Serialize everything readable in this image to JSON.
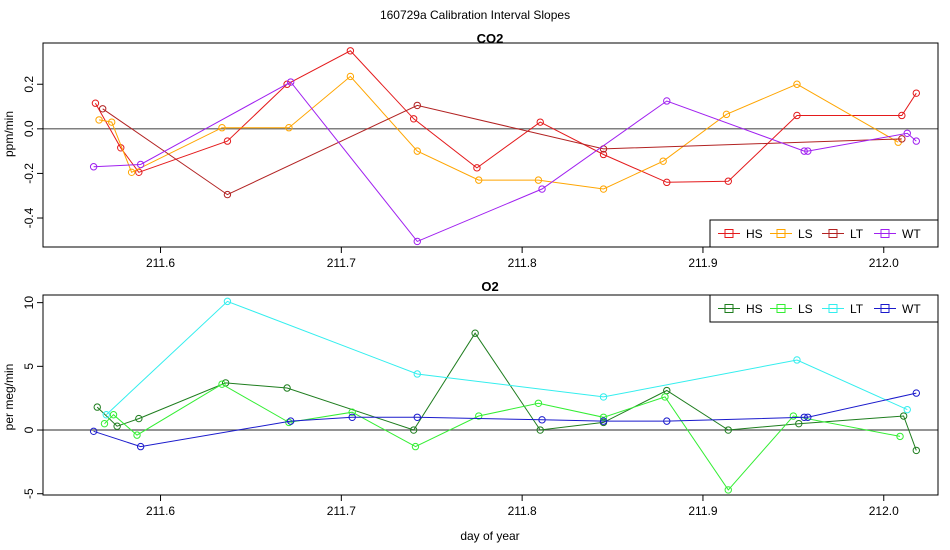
{
  "page": {
    "title": "160729a   Calibration Interval Slopes"
  },
  "chart_data": [
    {
      "type": "line",
      "title": "CO2",
      "ylabel": "ppm/min",
      "xlabel": "",
      "xlim": [
        211.535,
        212.03
      ],
      "ylim": [
        -0.53,
        0.385
      ],
      "xticks": [
        211.6,
        211.7,
        211.8,
        211.9,
        212.0
      ],
      "xtick_labels": [
        "211.6",
        "211.7",
        "211.8",
        "211.9",
        "212.0"
      ],
      "yticks": [
        -0.4,
        -0.2,
        0.0,
        0.2
      ],
      "ytick_labels": [
        "-0.4",
        "-0.2",
        "0.0",
        "0.2"
      ],
      "zero_line": true,
      "grid": false,
      "legend_position": "bottom-right",
      "series": [
        {
          "name": "HS",
          "color": "#e41a1c",
          "x": [
            211.564,
            211.578,
            211.588,
            211.637,
            211.67,
            211.705,
            211.74,
            211.775,
            211.81,
            211.845,
            211.88,
            211.914,
            211.952,
            212.01,
            212.018
          ],
          "y": [
            0.115,
            -0.085,
            -0.195,
            -0.055,
            0.2,
            0.35,
            0.045,
            -0.175,
            0.03,
            -0.115,
            -0.24,
            -0.235,
            0.06,
            0.06,
            0.16
          ]
        },
        {
          "name": "LS",
          "color": "#ffa500",
          "x": [
            211.566,
            211.573,
            211.584,
            211.634,
            211.671,
            211.705,
            211.742,
            211.776,
            211.809,
            211.845,
            211.878,
            211.913,
            211.952,
            212.008
          ],
          "y": [
            0.04,
            0.03,
            -0.195,
            0.005,
            0.005,
            0.235,
            -0.1,
            -0.23,
            -0.23,
            -0.27,
            -0.145,
            0.065,
            0.2,
            -0.06
          ]
        },
        {
          "name": "LT",
          "color": "#b22222",
          "x": [
            211.568,
            211.637,
            211.742,
            211.845,
            212.01
          ],
          "y": [
            0.09,
            -0.295,
            0.105,
            -0.09,
            -0.045
          ]
        },
        {
          "name": "WT",
          "color": "#a020f0",
          "x": [
            211.563,
            211.589,
            211.672,
            211.742,
            211.811,
            211.88,
            211.956,
            211.958,
            212.013,
            212.018
          ],
          "y": [
            -0.17,
            -0.16,
            0.21,
            -0.505,
            -0.27,
            0.125,
            -0.1,
            -0.1,
            -0.02,
            -0.055
          ]
        }
      ]
    },
    {
      "type": "line",
      "title": "O2",
      "ylabel": "per meg/min",
      "xlabel": "day of year",
      "xlim": [
        211.535,
        212.03
      ],
      "ylim": [
        -5.1,
        10.6
      ],
      "xticks": [
        211.6,
        211.7,
        211.8,
        211.9,
        212.0
      ],
      "xtick_labels": [
        "211.6",
        "211.7",
        "211.8",
        "211.9",
        "212.0"
      ],
      "yticks": [
        -5,
        0,
        5,
        10
      ],
      "ytick_labels": [
        "-5",
        "0",
        "5",
        "10"
      ],
      "zero_line": true,
      "grid": false,
      "legend_position": "top-right",
      "series": [
        {
          "name": "HS",
          "color": "#1e7d1e",
          "x": [
            211.565,
            211.576,
            211.588,
            211.636,
            211.67,
            211.74,
            211.774,
            211.81,
            211.845,
            211.88,
            211.914,
            211.953,
            212.011,
            212.018
          ],
          "y": [
            1.8,
            0.3,
            0.9,
            3.7,
            3.3,
            0.0,
            7.6,
            0.0,
            0.6,
            3.1,
            0.0,
            0.5,
            1.1,
            -1.6
          ]
        },
        {
          "name": "LS",
          "color": "#33ee33",
          "x": [
            211.569,
            211.574,
            211.587,
            211.634,
            211.671,
            211.706,
            211.741,
            211.776,
            211.809,
            211.845,
            211.879,
            211.914,
            211.95,
            212.009
          ],
          "y": [
            0.5,
            1.2,
            -0.4,
            3.6,
            0.6,
            1.4,
            -1.3,
            1.1,
            2.1,
            1.0,
            2.6,
            -4.7,
            1.1,
            -0.5
          ]
        },
        {
          "name": "LT",
          "color": "#33eeee",
          "x": [
            211.57,
            211.637,
            211.742,
            211.845,
            211.952,
            212.013
          ],
          "y": [
            1.2,
            10.1,
            4.4,
            2.6,
            5.5,
            1.6
          ]
        },
        {
          "name": "WT",
          "color": "#1a1acc",
          "x": [
            211.563,
            211.589,
            211.672,
            211.706,
            211.742,
            211.811,
            211.845,
            211.88,
            211.956,
            211.958,
            212.018
          ],
          "y": [
            -0.1,
            -1.3,
            0.7,
            1.0,
            1.0,
            0.8,
            0.7,
            0.7,
            1.0,
            1.0,
            2.9
          ]
        }
      ]
    }
  ]
}
